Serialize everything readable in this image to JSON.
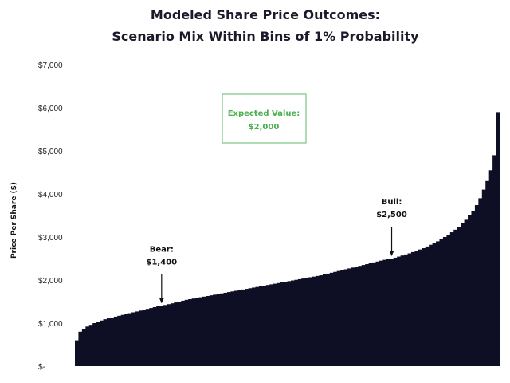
{
  "chart_data": {
    "type": "bar",
    "title_lines": [
      "Modeled Share Price Outcomes:",
      "Scenario Mix Within Bins of 1% Probability"
    ],
    "ylabel": "Price Per Share ($)",
    "xlabel": "",
    "ylim": [
      0,
      7000
    ],
    "yticks": [
      0,
      1000,
      2000,
      3000,
      4000,
      5000,
      6000,
      7000
    ],
    "ytick_labels": [
      "$-",
      "$1,000",
      "$2,000",
      "$3,000",
      "$4,000",
      "$5,000",
      "$6,000",
      "$7,000"
    ],
    "grid": false,
    "bar_color": "#0e0e24",
    "values": [
      600,
      800,
      870,
      920,
      960,
      1000,
      1030,
      1060,
      1090,
      1110,
      1130,
      1150,
      1170,
      1190,
      1210,
      1230,
      1250,
      1270,
      1290,
      1310,
      1330,
      1350,
      1370,
      1390,
      1400,
      1420,
      1440,
      1460,
      1480,
      1500,
      1520,
      1540,
      1555,
      1570,
      1585,
      1600,
      1615,
      1630,
      1645,
      1660,
      1675,
      1690,
      1705,
      1720,
      1735,
      1750,
      1765,
      1780,
      1795,
      1810,
      1825,
      1840,
      1855,
      1870,
      1885,
      1900,
      1915,
      1930,
      1945,
      1960,
      1975,
      1990,
      2005,
      2020,
      2035,
      2050,
      2065,
      2080,
      2095,
      2110,
      2130,
      2150,
      2170,
      2190,
      2210,
      2230,
      2250,
      2270,
      2290,
      2310,
      2330,
      2350,
      2370,
      2390,
      2410,
      2430,
      2450,
      2470,
      2490,
      2500,
      2520,
      2545,
      2570,
      2595,
      2620,
      2650,
      2680,
      2710,
      2740,
      2780,
      2820,
      2860,
      2900,
      2950,
      3000,
      3050,
      3110,
      3170,
      3240,
      3320,
      3400,
      3500,
      3610,
      3740,
      3900,
      4100,
      4300,
      4550,
      4900,
      5900
    ],
    "annotations": [
      {
        "label": "Bear:",
        "value_label": "$1,400",
        "bar_index": 24
      },
      {
        "label": "Bull:",
        "value_label": "$2,500",
        "bar_index": 89
      }
    ],
    "callout": {
      "label": "Expected Value:",
      "value_label": "$2,000",
      "color": "#4caf50"
    }
  }
}
